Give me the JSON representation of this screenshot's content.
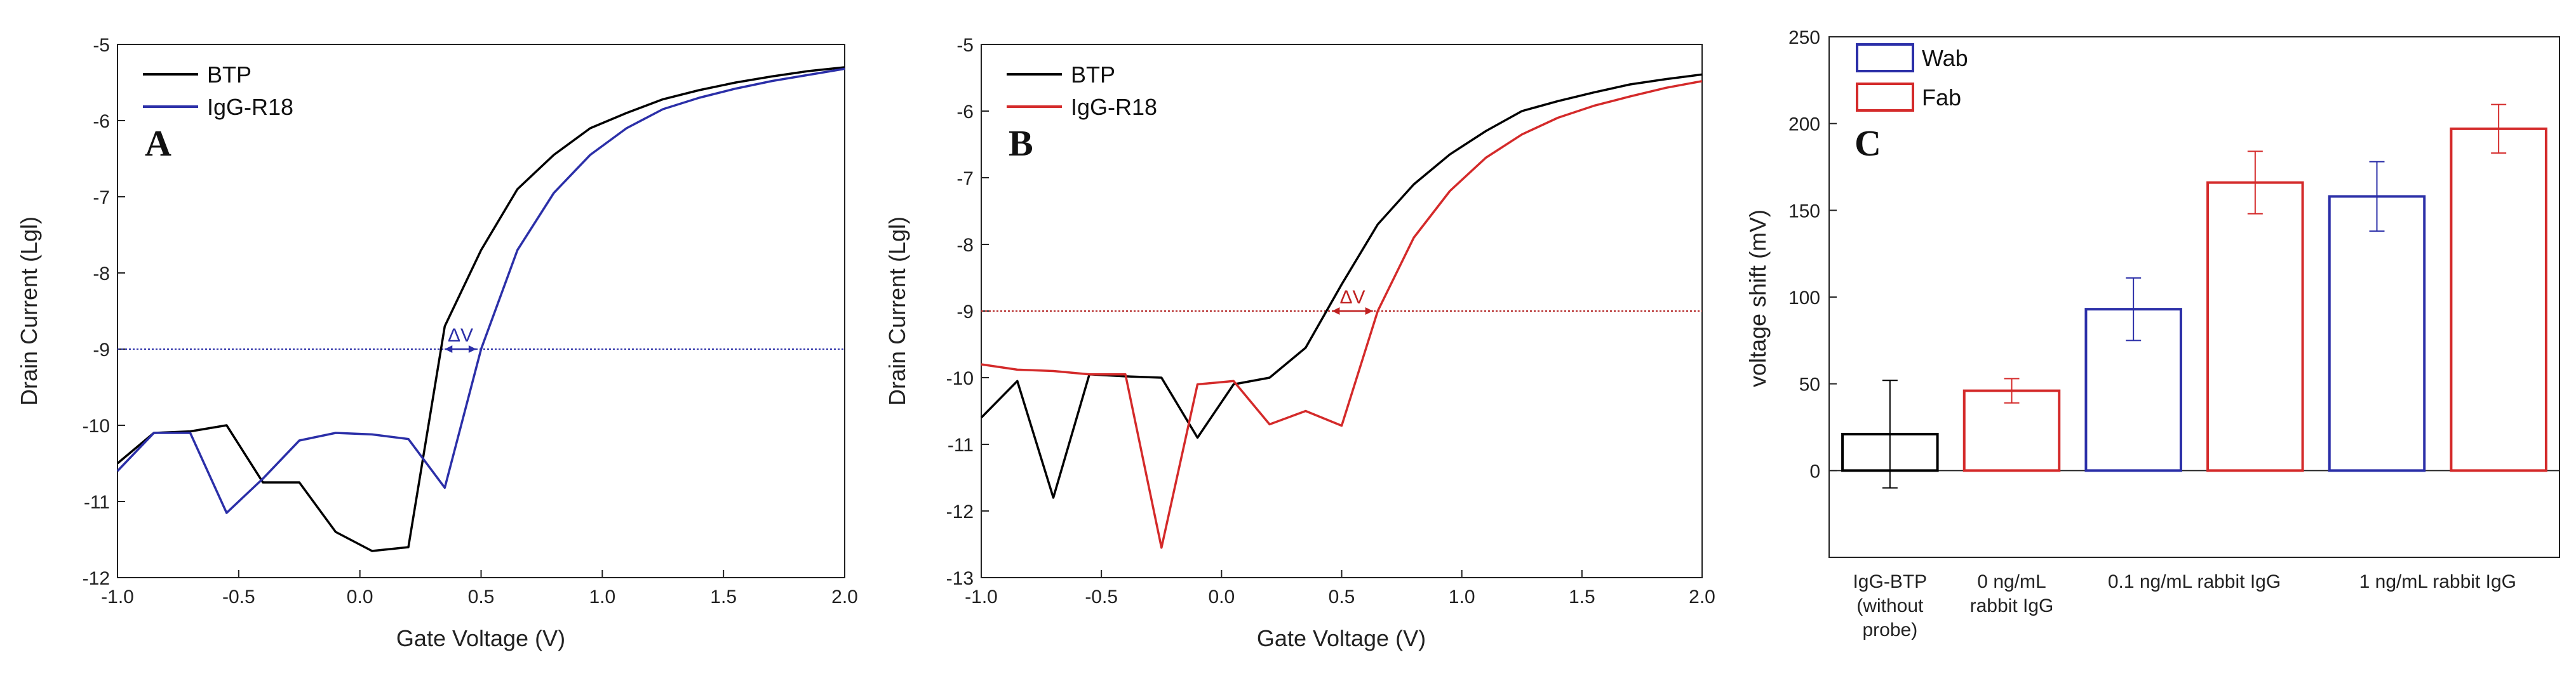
{
  "chart_data": [
    {
      "panel": "A",
      "type": "line",
      "xlabel": "Gate Voltage (V)",
      "ylabel": "Drain Current (Lgl)",
      "xlim": [
        -1.0,
        2.0
      ],
      "ylim": [
        -12,
        -5
      ],
      "xticks": [
        "-1.0",
        "-0.5",
        "0.0",
        "0.5",
        "1.0",
        "1.5",
        "2.0"
      ],
      "yticks": [
        "-12",
        "-11",
        "-10",
        "-9",
        "-8",
        "-7",
        "-6",
        "-5"
      ],
      "reference_line_y": -9,
      "annotation": "ΔV",
      "shift_from_x": 0.35,
      "shift_to_x": 0.48,
      "series": [
        {
          "name": "BTP",
          "color": "#000000",
          "x": [
            -1.0,
            -0.85,
            -0.7,
            -0.55,
            -0.4,
            -0.25,
            -0.1,
            0.05,
            0.2,
            0.35,
            0.5,
            0.65,
            0.8,
            0.95,
            1.1,
            1.25,
            1.4,
            1.55,
            1.7,
            1.85,
            2.0
          ],
          "y": [
            -10.5,
            -10.1,
            -10.08,
            -10.0,
            -10.75,
            -10.75,
            -11.4,
            -11.65,
            -11.6,
            -8.7,
            -7.7,
            -6.9,
            -6.45,
            -6.1,
            -5.9,
            -5.72,
            -5.6,
            -5.5,
            -5.42,
            -5.35,
            -5.3
          ]
        },
        {
          "name": "IgG-R18",
          "color": "#2b2fa8",
          "x": [
            -1.0,
            -0.85,
            -0.7,
            -0.55,
            -0.4,
            -0.25,
            -0.1,
            0.05,
            0.2,
            0.35,
            0.5,
            0.65,
            0.8,
            0.95,
            1.1,
            1.25,
            1.4,
            1.55,
            1.7,
            1.85,
            2.0
          ],
          "y": [
            -10.6,
            -10.1,
            -10.1,
            -11.15,
            -10.7,
            -10.2,
            -10.1,
            -10.12,
            -10.18,
            -10.82,
            -9.0,
            -7.7,
            -6.95,
            -6.45,
            -6.1,
            -5.85,
            -5.7,
            -5.58,
            -5.48,
            -5.4,
            -5.32
          ]
        }
      ]
    },
    {
      "panel": "B",
      "type": "line",
      "xlabel": "Gate Voltage (V)",
      "ylabel": "Drain Current (Lgl)",
      "xlim": [
        -1.0,
        2.0
      ],
      "ylim": [
        -13,
        -5
      ],
      "xticks": [
        "-1.0",
        "-0.5",
        "0.0",
        "0.5",
        "1.0",
        "1.5",
        "2.0"
      ],
      "yticks": [
        "-13",
        "-12",
        "-11",
        "-10",
        "-9",
        "-8",
        "-7",
        "-6",
        "-5"
      ],
      "reference_line_y": -9,
      "annotation": "ΔV",
      "shift_from_x": 0.46,
      "shift_to_x": 0.63,
      "series": [
        {
          "name": "BTP",
          "color": "#000000",
          "x": [
            -1.0,
            -0.85,
            -0.7,
            -0.55,
            -0.4,
            -0.25,
            -0.1,
            0.05,
            0.2,
            0.35,
            0.5,
            0.65,
            0.8,
            0.95,
            1.1,
            1.25,
            1.4,
            1.55,
            1.7,
            1.85,
            2.0
          ],
          "y": [
            -10.6,
            -10.05,
            -11.8,
            -9.95,
            -9.98,
            -10.0,
            -10.9,
            -10.1,
            -10.0,
            -9.55,
            -8.6,
            -7.7,
            -7.1,
            -6.65,
            -6.3,
            -6.0,
            -5.85,
            -5.72,
            -5.6,
            -5.52,
            -5.45
          ]
        },
        {
          "name": "IgG-R18",
          "color": "#d42a2a",
          "x": [
            -1.0,
            -0.85,
            -0.7,
            -0.55,
            -0.4,
            -0.25,
            -0.1,
            0.05,
            0.2,
            0.35,
            0.5,
            0.65,
            0.8,
            0.95,
            1.1,
            1.25,
            1.4,
            1.55,
            1.7,
            1.85,
            2.0
          ],
          "y": [
            -9.8,
            -9.88,
            -9.9,
            -9.95,
            -9.95,
            -12.55,
            -10.1,
            -10.05,
            -10.7,
            -10.5,
            -10.72,
            -9.0,
            -7.9,
            -7.2,
            -6.7,
            -6.35,
            -6.1,
            -5.92,
            -5.78,
            -5.65,
            -5.55
          ]
        }
      ]
    },
    {
      "panel": "C",
      "type": "bar",
      "ylabel": "voltage shift (mV)",
      "ylim": [
        -50,
        250
      ],
      "yticks": [
        "0",
        "50",
        "100",
        "150",
        "200",
        "250"
      ],
      "category_labels": [
        {
          "lines": [
            "IgG-BTP",
            "(without",
            "probe)"
          ]
        },
        {
          "lines": [
            "0 ng/mL",
            "rabbit IgG"
          ]
        },
        {
          "lines": [
            "0.1 ng/mL rabbit IgG"
          ]
        },
        {
          "lines": [
            "1 ng/mL rabbit IgG"
          ]
        }
      ],
      "legend": [
        {
          "name": "Wab",
          "color": "#2b2fa8"
        },
        {
          "name": "Fab",
          "color": "#d42a2a"
        }
      ],
      "bars": [
        {
          "group": 0,
          "series": "IgG-BTP",
          "value": 21,
          "err": 31,
          "color": "#000000"
        },
        {
          "group": 1,
          "series": "Fab",
          "value": 46,
          "err": 7,
          "color": "#d42a2a"
        },
        {
          "group": 2,
          "series": "Wab",
          "value": 93,
          "err": 18,
          "color": "#2b2fa8"
        },
        {
          "group": 2,
          "series": "Fab",
          "value": 166,
          "err": 18,
          "color": "#d42a2a"
        },
        {
          "group": 3,
          "series": "Wab",
          "value": 158,
          "err": 20,
          "color": "#2b2fa8"
        },
        {
          "group": 3,
          "series": "Fab",
          "value": 197,
          "err": 14,
          "color": "#d42a2a"
        }
      ]
    }
  ]
}
